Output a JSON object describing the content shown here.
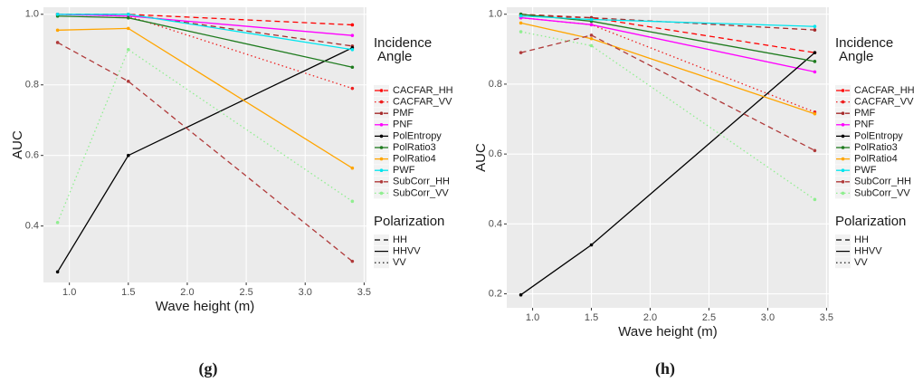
{
  "chart_data": [
    {
      "type": "line",
      "caption": "(g)",
      "x_label": "Wave height (m)",
      "y_label": "AUC",
      "x": [
        0.9,
        1.5,
        3.4
      ],
      "xlim": [
        0.78,
        3.52
      ],
      "xticks": [
        {
          "value": 1.0,
          "label": "1.0"
        },
        1.5,
        {
          "value": 2.0,
          "label": "2.0"
        },
        2.5,
        {
          "value": 3.0,
          "label": "3.0"
        },
        3.5
      ],
      "ylim": [
        0.24,
        1.02
      ],
      "yticks": [
        0.4,
        0.6,
        0.8,
        {
          "value": 1.0,
          "label": "1.0"
        }
      ],
      "grid": true,
      "legend_title": [
        "Incidence",
        "Angle"
      ],
      "legend2_title": "Polarization",
      "legend2": [
        {
          "name": "HH",
          "linestyle": "dashed"
        },
        {
          "name": "HHVV",
          "linestyle": "solid"
        },
        {
          "name": "VV",
          "linestyle": "dotted"
        }
      ],
      "series": [
        {
          "name": "CACFAR_HH",
          "color": "#ff0000",
          "linestyle": "dashed",
          "values": [
            1.0,
            1.0,
            0.97
          ]
        },
        {
          "name": "CACFAR_VV",
          "color": "#ee2020",
          "linestyle": "dotted",
          "values": [
            1.0,
            0.995,
            0.79
          ]
        },
        {
          "name": "PMF",
          "color": "#a52a2a",
          "linestyle": "dashed",
          "values": [
            1.0,
            1.0,
            0.91
          ]
        },
        {
          "name": "PNF",
          "color": "#ff00ff",
          "linestyle": "solid",
          "values": [
            1.0,
            0.995,
            0.94
          ]
        },
        {
          "name": "PolEntropy",
          "color": "#000000",
          "linestyle": "solid",
          "values": [
            0.27,
            0.6,
            0.905
          ]
        },
        {
          "name": "PolRatio3",
          "color": "#1e7b1e",
          "linestyle": "solid",
          "values": [
            0.995,
            0.99,
            0.85
          ]
        },
        {
          "name": "PolRatio4",
          "color": "#ffa500",
          "linestyle": "solid",
          "values": [
            0.955,
            0.96,
            0.564
          ]
        },
        {
          "name": "PWF",
          "color": "#00e5ee",
          "linestyle": "solid",
          "values": [
            1.0,
            1.0,
            0.9
          ]
        },
        {
          "name": "SubCorr_HH",
          "color": "#b03a3a",
          "linestyle": "dashed",
          "values": [
            0.92,
            0.81,
            0.3
          ]
        },
        {
          "name": "SubCorr_VV",
          "color": "#90ee90",
          "linestyle": "dotted",
          "values": [
            0.41,
            0.9,
            0.47
          ]
        }
      ]
    },
    {
      "type": "line",
      "caption": "(h)",
      "x_label": "Wave height (m)",
      "y_label": "AUC",
      "x": [
        0.9,
        1.5,
        3.4
      ],
      "xlim": [
        0.78,
        3.52
      ],
      "xticks": [
        {
          "value": 1.0,
          "label": "1.0"
        },
        1.5,
        {
          "value": 2.0,
          "label": "2.0"
        },
        2.5,
        {
          "value": 3.0,
          "label": "3.0"
        },
        3.5
      ],
      "ylim": [
        0.16,
        1.02
      ],
      "yticks": [
        0.2,
        0.4,
        0.6,
        0.8,
        {
          "value": 1.0,
          "label": "1.0"
        }
      ],
      "grid": true,
      "legend_title": [
        "Incidence",
        "Angle"
      ],
      "legend2_title": "Polarization",
      "legend2": [
        {
          "name": "HH",
          "linestyle": "dashed"
        },
        {
          "name": "HHVV",
          "linestyle": "solid"
        },
        {
          "name": "VV",
          "linestyle": "dotted"
        }
      ],
      "series": [
        {
          "name": "CACFAR_HH",
          "color": "#ff0000",
          "linestyle": "dashed",
          "values": [
            0.995,
            0.99,
            0.89
          ]
        },
        {
          "name": "CACFAR_VV",
          "color": "#ee2020",
          "linestyle": "dotted",
          "values": [
            0.99,
            0.97,
            0.72
          ]
        },
        {
          "name": "PMF",
          "color": "#a52a2a",
          "linestyle": "dashed",
          "values": [
            1.0,
            0.99,
            0.955
          ]
        },
        {
          "name": "PNF",
          "color": "#ff00ff",
          "linestyle": "solid",
          "values": [
            0.99,
            0.97,
            0.835
          ]
        },
        {
          "name": "PolEntropy",
          "color": "#000000",
          "linestyle": "solid",
          "values": [
            0.197,
            0.34,
            0.89
          ]
        },
        {
          "name": "PolRatio3",
          "color": "#1e7b1e",
          "linestyle": "solid",
          "values": [
            1.0,
            0.98,
            0.865
          ]
        },
        {
          "name": "PolRatio4",
          "color": "#ffa500",
          "linestyle": "solid",
          "values": [
            0.975,
            0.93,
            0.715
          ]
        },
        {
          "name": "PWF",
          "color": "#00e5ee",
          "linestyle": "solid",
          "values": [
            0.995,
            0.985,
            0.965
          ]
        },
        {
          "name": "SubCorr_HH",
          "color": "#b03a3a",
          "linestyle": "dashed",
          "values": [
            0.89,
            0.94,
            0.61
          ]
        },
        {
          "name": "SubCorr_VV",
          "color": "#90ee90",
          "linestyle": "dotted",
          "values": [
            0.95,
            0.91,
            0.47
          ]
        }
      ]
    }
  ]
}
